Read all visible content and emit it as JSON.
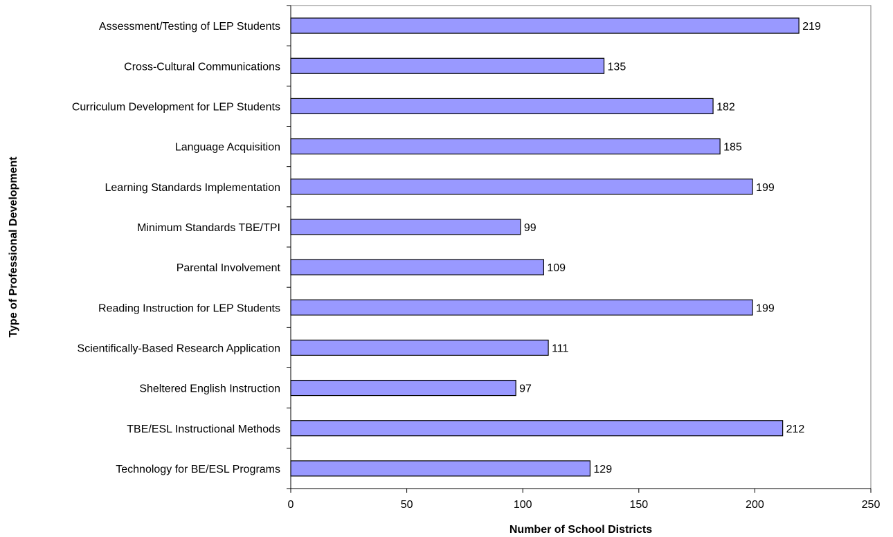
{
  "chart_data": {
    "type": "bar",
    "orientation": "horizontal",
    "categories": [
      "Assessment/Testing of LEP Students",
      "Cross-Cultural Communications",
      "Curriculum Development for LEP Students",
      "Language Acquisition",
      "Learning Standards Implementation",
      "Minimum Standards TBE/TPI",
      "Parental Involvement",
      "Reading Instruction for LEP Students",
      "Scientifically-Based Research Application",
      "Sheltered English Instruction",
      "TBE/ESL Instructional Methods",
      "Technology for BE/ESL Programs"
    ],
    "values": [
      219,
      135,
      182,
      185,
      199,
      99,
      109,
      199,
      111,
      97,
      212,
      129
    ],
    "xlabel": "Number of School Districts",
    "ylabel": "Type of Professional Development",
    "xlim": [
      0,
      250
    ],
    "xticks": [
      0,
      50,
      100,
      150,
      200,
      250
    ],
    "grid": false,
    "legend": "none",
    "bar_color": "#9999ff",
    "bar_border_color": "#000000"
  }
}
